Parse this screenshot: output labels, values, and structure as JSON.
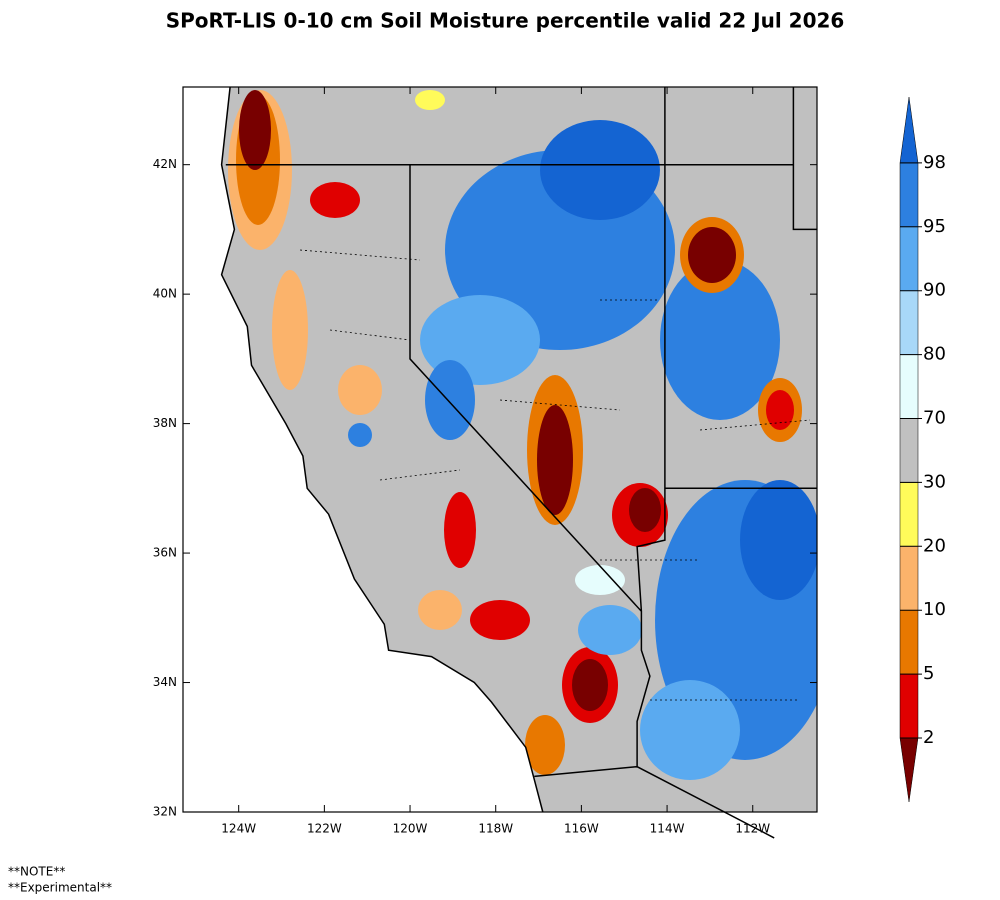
{
  "title": "SPoRT-LIS 0-10 cm Soil Moisture percentile valid 22 Jul 2026",
  "map": {
    "lon_range": [
      -125.3,
      -110.5
    ],
    "lat_range": [
      32,
      43.2
    ],
    "lon_ticks": [
      {
        "value": -124,
        "label": "124W"
      },
      {
        "value": -122,
        "label": "122W"
      },
      {
        "value": -120,
        "label": "120W"
      },
      {
        "value": -118,
        "label": "118W"
      },
      {
        "value": -116,
        "label": "116W"
      },
      {
        "value": -114,
        "label": "114W"
      },
      {
        "value": -112,
        "label": "112W"
      }
    ],
    "lat_ticks": [
      {
        "value": 32,
        "label": "32N"
      },
      {
        "value": 34,
        "label": "34N"
      },
      {
        "value": 36,
        "label": "36N"
      },
      {
        "value": 38,
        "label": "38N"
      },
      {
        "value": 40,
        "label": "40N"
      },
      {
        "value": 42,
        "label": "42N"
      }
    ]
  },
  "colorbar": {
    "levels": [
      2,
      5,
      10,
      20,
      30,
      70,
      80,
      90,
      95,
      98
    ],
    "colors": [
      "#780000",
      "#e00000",
      "#e87800",
      "#fbb36b",
      "#fffb5a",
      "#c0c0c0",
      "#e6fdfd",
      "#a8d8f8",
      "#5aaaf0",
      "#2d80e0",
      "#1464d2"
    ]
  },
  "notes": [
    "**NOTE**",
    "**Experimental**"
  ]
}
